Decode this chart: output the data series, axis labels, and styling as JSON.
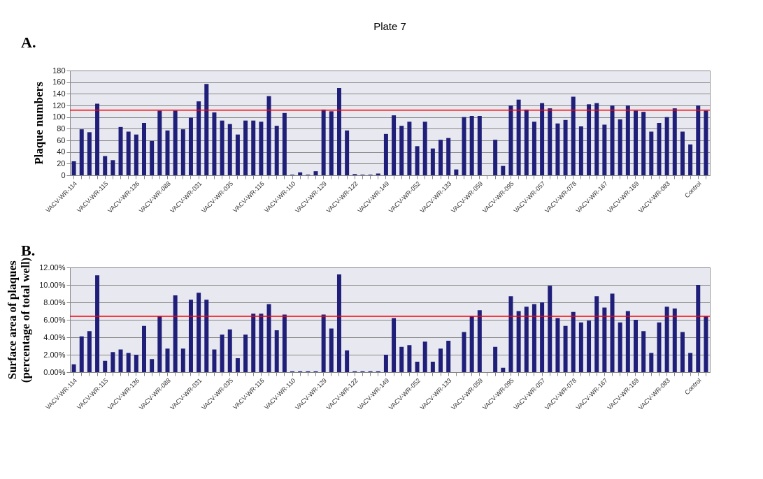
{
  "chart_data": [
    {
      "type": "bar",
      "title": "Plate 7",
      "ylabel": "Plaque numbers",
      "annotations": [
        "A."
      ],
      "categories": [
        "VACV-WR-114",
        null,
        null,
        null,
        "VACV-WR-115",
        null,
        null,
        null,
        "VACV-WR-136",
        null,
        null,
        null,
        "VACV-WR-088",
        null,
        null,
        null,
        "VACV-WR-031",
        null,
        null,
        null,
        "VACV-WR-035",
        null,
        null,
        null,
        "VACV-WR-116",
        null,
        null,
        null,
        "VACV-WR-110",
        null,
        null,
        null,
        "VACV-WR-129",
        null,
        null,
        null,
        "VACV-WR-122",
        null,
        null,
        null,
        "VACV-WR-149",
        null,
        null,
        null,
        "VACV-WR-052",
        null,
        null,
        null,
        "VACV-WR-133",
        null,
        null,
        null,
        "VACV-WR-059",
        null,
        null,
        null,
        "VACV-WR-095",
        null,
        null,
        null,
        "VACV-WR-057",
        null,
        null,
        null,
        "VACV-WR-078",
        null,
        null,
        null,
        "VACV-WR-167",
        null,
        null,
        null,
        "VACV-WR-169",
        null,
        null,
        null,
        "VACV-WR-083",
        null,
        null,
        null,
        "Control",
        null
      ],
      "values": [
        24,
        79,
        74,
        123,
        33,
        26,
        83,
        75,
        70,
        90,
        59,
        111,
        77,
        111,
        79,
        99,
        127,
        157,
        108,
        94,
        88,
        70,
        94,
        94,
        92,
        136,
        85,
        107,
        1,
        5,
        1,
        7,
        113,
        110,
        150,
        77,
        2,
        1,
        1,
        3,
        71,
        103,
        85,
        92,
        50,
        92,
        46,
        61,
        64,
        10,
        100,
        102,
        102,
        0,
        61,
        16,
        120,
        130,
        113,
        92,
        124,
        115,
        89,
        95,
        135,
        84,
        122,
        124,
        87,
        120,
        96,
        120,
        111,
        109,
        75,
        90,
        100,
        115,
        75,
        53,
        120,
        111
      ],
      "color": "#1f1f7a",
      "ylim": [
        0,
        180
      ],
      "yticks": [
        0,
        20,
        40,
        60,
        80,
        100,
        120,
        140,
        160,
        180
      ],
      "grid": "y",
      "ref_lines": [
        {
          "axis": "y",
          "value": 112,
          "color": "#ff0000"
        }
      ]
    },
    {
      "type": "bar",
      "ylabel": "Surface area of plaques\n(percentage of total well)",
      "annotations": [
        "B."
      ],
      "categories": [
        "VACV-WR-114",
        null,
        null,
        null,
        "VACV-WR-115",
        null,
        null,
        null,
        "VACV-WR-136",
        null,
        null,
        null,
        "VACV-WR-088",
        null,
        null,
        null,
        "VACV-WR-031",
        null,
        null,
        null,
        "VACV-WR-035",
        null,
        null,
        null,
        "VACV-WR-116",
        null,
        null,
        null,
        "VACV-WR-110",
        null,
        null,
        null,
        "VACV-WR-129",
        null,
        null,
        null,
        "VACV-WR-122",
        null,
        null,
        null,
        "VACV-WR-149",
        null,
        null,
        null,
        "VACV-WR-052",
        null,
        null,
        null,
        "VACV-WR-133",
        null,
        null,
        null,
        "VACV-WR-059",
        null,
        null,
        null,
        "VACV-WR-095",
        null,
        null,
        null,
        "VACV-WR-057",
        null,
        null,
        null,
        "VACV-WR-078",
        null,
        null,
        null,
        "VACV-WR-167",
        null,
        null,
        null,
        "VACV-WR-169",
        null,
        null,
        null,
        "VACV-WR-083",
        null,
        null,
        null,
        "Control",
        null
      ],
      "values": [
        0.9,
        4.1,
        4.7,
        11.1,
        1.3,
        2.3,
        2.6,
        2.2,
        2.0,
        5.3,
        1.5,
        6.4,
        2.7,
        8.8,
        2.7,
        8.3,
        9.1,
        8.3,
        2.6,
        4.3,
        4.9,
        1.6,
        4.3,
        6.7,
        6.7,
        7.8,
        4.8,
        6.6,
        0.1,
        0.1,
        0.1,
        0.1,
        6.6,
        5.0,
        11.2,
        2.5,
        0.1,
        0.1,
        0.1,
        0.1,
        2.0,
        6.2,
        2.9,
        3.1,
        1.2,
        3.5,
        1.2,
        2.7,
        3.6,
        0,
        4.6,
        6.4,
        7.1,
        0,
        2.9,
        0.5,
        8.7,
        7.0,
        7.5,
        7.8,
        8.0,
        9.9,
        6.2,
        5.3,
        6.9,
        5.7,
        5.9,
        8.7,
        7.4,
        9.0,
        5.7,
        7.0,
        6.0,
        4.7,
        2.2,
        5.7,
        7.5,
        7.3,
        4.6,
        2.2,
        10.0,
        6.4
      ],
      "color": "#1f1f7a",
      "ylim": [
        0,
        12
      ],
      "yticks": [
        {
          "value": 0,
          "label": "0.00%"
        },
        {
          "value": 2,
          "label": "2.00%"
        },
        {
          "value": 4,
          "label": "4.00%"
        },
        {
          "value": 6,
          "label": "6.00%"
        },
        {
          "value": 8,
          "label": "8.00%"
        },
        {
          "value": 10,
          "label": "10.00%"
        },
        {
          "value": 12,
          "label": "12.00%"
        }
      ],
      "grid": "y",
      "ref_lines": [
        {
          "axis": "y",
          "value": 6.4,
          "color": "#ff0000"
        }
      ]
    }
  ]
}
